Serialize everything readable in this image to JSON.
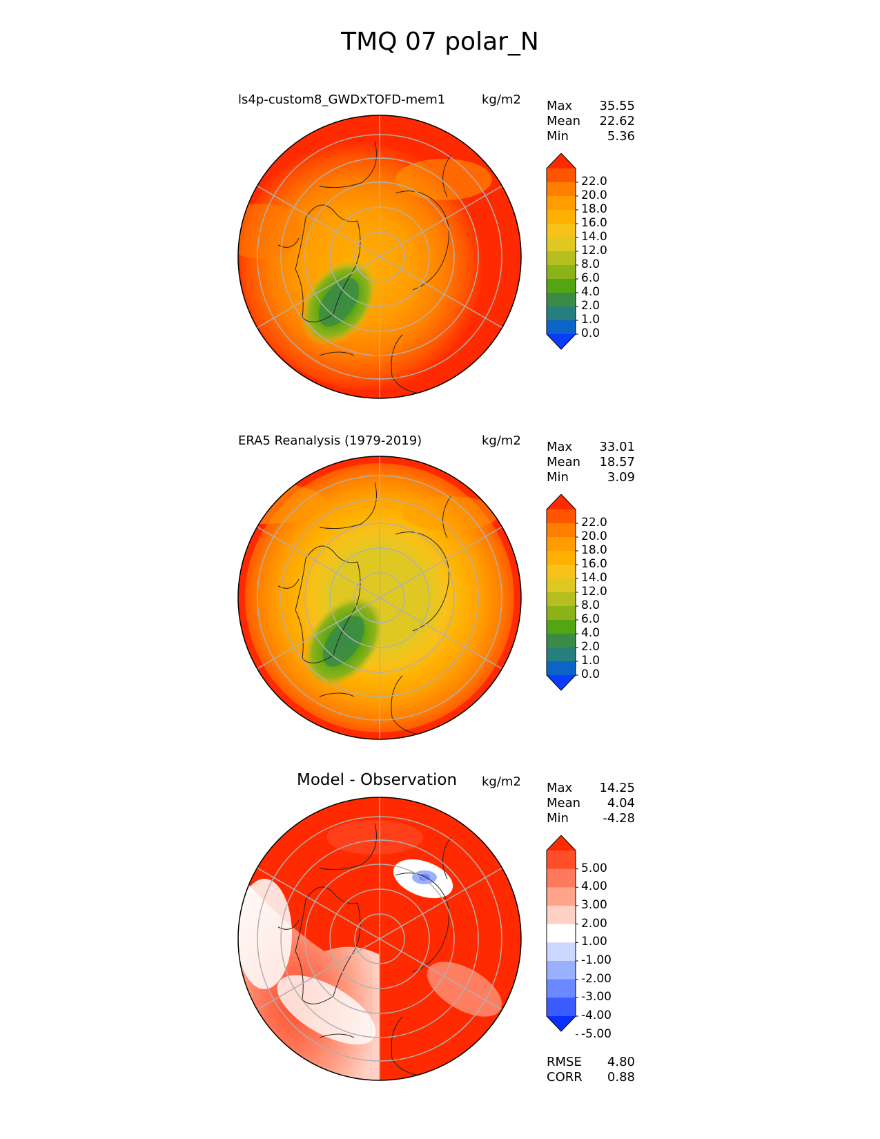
{
  "title": "TMQ 07 polar_N",
  "panels": [
    {
      "title": "ls4p-custom8_GWDxTOFD-mem1",
      "units": "kg/m2",
      "stats": [
        {
          "label": "Max",
          "value": "35.55"
        },
        {
          "label": "Mean",
          "value": "22.62"
        },
        {
          "label": "Min",
          "value": "5.36"
        }
      ],
      "colorbar": {
        "labels": [
          "22.0",
          "20.0",
          "18.0",
          "16.0",
          "14.0",
          "12.0",
          "8.0",
          "6.0",
          "4.0",
          "2.0",
          "1.0",
          "0.0"
        ],
        "colors": [
          "#ff2a00",
          "#ff5500",
          "#ff7f00",
          "#ff9d00",
          "#ffb000",
          "#f7c21a",
          "#e0c823",
          "#b5bf1f",
          "#8cb21a",
          "#53a514",
          "#3a8b46",
          "#267f7e",
          "#0c64c8",
          "#0a3cff"
        ]
      },
      "map_field": "model"
    },
    {
      "title": "ERA5 Reanalysis (1979-2019)",
      "units": "kg/m2",
      "stats": [
        {
          "label": "Max",
          "value": "33.01"
        },
        {
          "label": "Mean",
          "value": "18.57"
        },
        {
          "label": "Min",
          "value": "3.09"
        }
      ],
      "colorbar": {
        "labels": [
          "22.0",
          "20.0",
          "18.0",
          "16.0",
          "14.0",
          "12.0",
          "8.0",
          "6.0",
          "4.0",
          "2.0",
          "1.0",
          "0.0"
        ],
        "colors": [
          "#ff2a00",
          "#ff5500",
          "#ff7f00",
          "#ff9d00",
          "#ffb000",
          "#f7c21a",
          "#e0c823",
          "#b5bf1f",
          "#8cb21a",
          "#53a514",
          "#3a8b46",
          "#267f7e",
          "#0c64c8",
          "#0a3cff"
        ]
      },
      "map_field": "obs"
    },
    {
      "title": "Model - Observation",
      "units": "kg/m2",
      "stats": [
        {
          "label": "Max",
          "value": "14.25"
        },
        {
          "label": "Mean",
          "value": "4.04"
        },
        {
          "label": "Min",
          "value": "-4.28"
        }
      ],
      "colorbar": {
        "labels": [
          "5.00",
          "4.00",
          "3.00",
          "2.00",
          "1.00",
          "-1.00",
          "-2.00",
          "-3.00",
          "-4.00",
          "-5.00"
        ],
        "colors": [
          "#ff2a00",
          "#ff4e2a",
          "#ff7a5c",
          "#ffa38a",
          "#ffd0c4",
          "#ffffff",
          "#ccd8ff",
          "#99b0ff",
          "#6a88ff",
          "#3a5cff",
          "#0a30ff"
        ]
      },
      "map_field": "diff"
    }
  ],
  "metrics": [
    {
      "label": "RMSE",
      "value": "4.80"
    },
    {
      "label": "CORR",
      "value": "0.88"
    }
  ]
}
